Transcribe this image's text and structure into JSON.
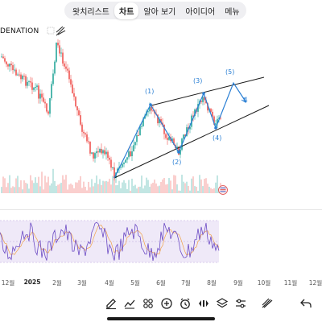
{
  "tabs": [
    {
      "label": "왓치리스트",
      "active": false
    },
    {
      "label": "차트",
      "active": true
    },
    {
      "label": "알아 보기",
      "active": false
    },
    {
      "label": "아이디어",
      "active": false
    },
    {
      "label": "메뉴",
      "active": false
    }
  ],
  "symbol": "DENATION",
  "annotations": {
    "wave_1": "(1)",
    "wave_2": "(2)",
    "wave_3": "(3)",
    "wave_4": "(4)",
    "wave_5": "(5)",
    "target": "4"
  },
  "time_axis": [
    {
      "label": "12월",
      "bold": false
    },
    {
      "label": "2025",
      "bold": true
    },
    {
      "label": "2월",
      "bold": false
    },
    {
      "label": "3월",
      "bold": false
    },
    {
      "label": "4월",
      "bold": false
    },
    {
      "label": "5월",
      "bold": false
    },
    {
      "label": "6월",
      "bold": false
    },
    {
      "label": "7월",
      "bold": false
    },
    {
      "label": "8월",
      "bold": false
    },
    {
      "label": "9월",
      "bold": false
    },
    {
      "label": "10월",
      "bold": false
    },
    {
      "label": "11월",
      "bold": false
    },
    {
      "label": "12월",
      "bold": false
    }
  ],
  "toolbar": [
    {
      "icon": "draw-pencil-icon"
    },
    {
      "icon": "indicators-icon"
    },
    {
      "icon": "templates-icon"
    },
    {
      "icon": "add-icon"
    },
    {
      "icon": "alert-clock-icon"
    },
    {
      "icon": "replay-icon"
    },
    {
      "icon": "layers-icon"
    },
    {
      "icon": "settings-sliders-icon"
    },
    {
      "icon": "fast-draw-icon"
    },
    {
      "icon": "undo-icon"
    }
  ],
  "colors": {
    "candle_up": "#26a69a",
    "candle_down": "#ef5350",
    "annotation": "#2a7fd4",
    "rsi_line": "#7e57c2",
    "rsi_band": "#e9e2f7"
  }
}
